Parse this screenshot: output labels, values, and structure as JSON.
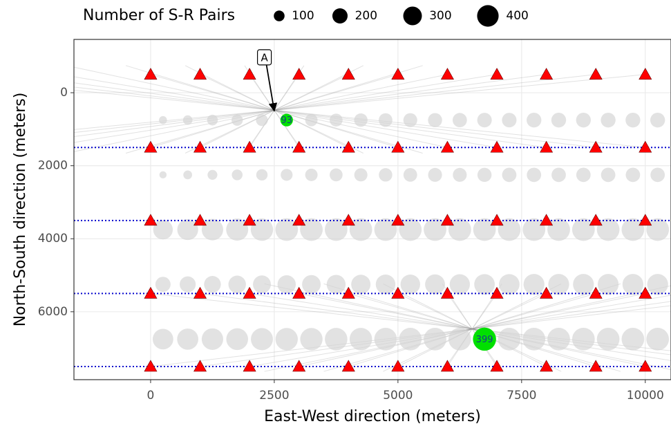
{
  "chart_data": {
    "type": "scatter",
    "x_label": "East-West direction (meters)",
    "y_label": "North-South direction (meters)",
    "legend_title": "Number of S-R Pairs",
    "legend_sizes": [
      100,
      200,
      300,
      400
    ],
    "xlim": [
      -1550,
      10520
    ],
    "ylim": [
      7860,
      -1460
    ],
    "xticks": [
      0,
      2500,
      5000,
      7500,
      10000
    ],
    "yticks": [
      0,
      2000,
      4000,
      6000
    ],
    "grid": true,
    "stations": {
      "x": [
        0,
        1000,
        2000,
        3000,
        4000,
        5000,
        6000,
        7000,
        8000,
        9000,
        10000
      ],
      "rows": [
        -500,
        1500,
        3500,
        5500,
        7500
      ],
      "color": "#ff0000"
    },
    "hlines": {
      "values": [
        1500,
        3500,
        5500,
        7500
      ],
      "color": "#0000cc"
    },
    "bins": {
      "x": [
        250,
        750,
        1250,
        1750,
        2250,
        2750,
        3250,
        3750,
        4250,
        4750,
        5250,
        5750,
        6250,
        6750,
        7250,
        7750,
        8250,
        8750,
        9250,
        9750,
        10250
      ],
      "color": "#d3d3d3",
      "series": [
        {
          "y": 750,
          "values": [
            50,
            70,
            90,
            100,
            110,
            93,
            120,
            130,
            140,
            145,
            150,
            155,
            160,
            165,
            165,
            170,
            170,
            170,
            170,
            170,
            170
          ]
        },
        {
          "y": 2250,
          "values": [
            40,
            60,
            75,
            90,
            100,
            110,
            120,
            130,
            135,
            140,
            145,
            150,
            150,
            155,
            160,
            160,
            160,
            160,
            160,
            160,
            160
          ]
        },
        {
          "y": 3750,
          "values": [
            300,
            340,
            360,
            380,
            390,
            400,
            400,
            400,
            400,
            400,
            400,
            400,
            400,
            400,
            400,
            400,
            400,
            400,
            400,
            400,
            400
          ]
        },
        {
          "y": 5250,
          "values": [
            180,
            200,
            220,
            240,
            250,
            260,
            270,
            280,
            290,
            300,
            300,
            310,
            320,
            330,
            330,
            340,
            340,
            340,
            340,
            340,
            340
          ]
        },
        {
          "y": 6750,
          "values": [
            330,
            350,
            360,
            370,
            380,
            390,
            390,
            395,
            395,
            399,
            399,
            399,
            399,
            399,
            399,
            399,
            399,
            399,
            399,
            399,
            399
          ]
        }
      ]
    },
    "highlights": {
      "color": "#00e000",
      "points": [
        {
          "x": 2750,
          "y": 750,
          "value": 93
        },
        {
          "x": 6750,
          "y": 6750,
          "value": 399
        }
      ]
    },
    "focus_points": [
      {
        "x": 2500,
        "y": 480
      },
      {
        "x": 6500,
        "y": 6470
      }
    ],
    "annotation": {
      "text": "A",
      "x": 2300,
      "y": -970,
      "target_x": 2500,
      "target_y": 500
    }
  }
}
